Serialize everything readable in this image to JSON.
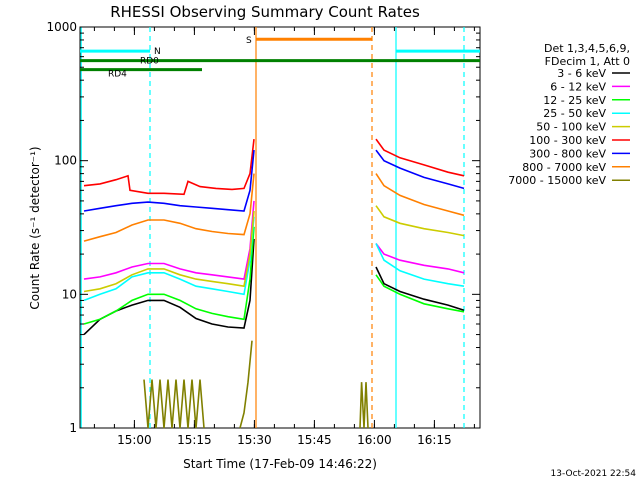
{
  "chart_data": {
    "type": "line",
    "title": "RHESSI Observing Summary Count Rates",
    "xlabel": "Start Time (17-Feb-09 14:46:22)",
    "ylabel": "Count Rate (s⁻¹ detector⁻¹)",
    "y_scale": "log",
    "ylim": [
      1,
      1000
    ],
    "xlim_minutes": [
      0,
      100
    ],
    "x_ticks": [
      {
        "label": "15:00",
        "t": 13.6
      },
      {
        "label": "15:15",
        "t": 28.6
      },
      {
        "label": "15:30",
        "t": 43.6
      },
      {
        "label": "15:45",
        "t": 58.6
      },
      {
        "label": "16:00",
        "t": 73.6
      },
      {
        "label": "16:15",
        "t": 88.6
      }
    ],
    "y_ticks": [
      {
        "label": "1",
        "v": 1
      },
      {
        "label": "10",
        "v": 10
      },
      {
        "label": "100",
        "v": 100
      },
      {
        "label": "1000",
        "v": 1000
      }
    ],
    "legend_header": [
      "Det 1,3,4,5,6,9,",
      "FDecim 1, Att 0"
    ],
    "series": [
      {
        "name": "3 - 6 keV",
        "color": "#000000",
        "segments": [
          [
            [
              1,
              5.0
            ],
            [
              5,
              6.5
            ],
            [
              9,
              7.5
            ],
            [
              13,
              8.3
            ],
            [
              17,
              9.0
            ],
            [
              21,
              9.0
            ],
            [
              25,
              8.0
            ],
            [
              29,
              6.6
            ],
            [
              33,
              6.0
            ],
            [
              37,
              5.7
            ],
            [
              41,
              5.6
            ],
            [
              42.5,
              9
            ],
            [
              43.5,
              26
            ]
          ],
          [
            [
              74,
              16.0
            ],
            [
              76,
              12.0
            ],
            [
              80,
              10.5
            ],
            [
              86,
              9.2
            ],
            [
              92,
              8.3
            ],
            [
              96,
              7.6
            ]
          ]
        ]
      },
      {
        "name": "6 - 12 keV",
        "color": "#ff00ff",
        "segments": [
          [
            [
              1,
              13.0
            ],
            [
              5,
              13.5
            ],
            [
              9,
              14.5
            ],
            [
              13,
              16.0
            ],
            [
              17,
              17.0
            ],
            [
              21,
              17.0
            ],
            [
              25,
              15.5
            ],
            [
              29,
              14.5
            ],
            [
              33,
              14.0
            ],
            [
              37,
              13.5
            ],
            [
              41,
              13.0
            ],
            [
              42.5,
              22
            ],
            [
              43.5,
              50
            ]
          ],
          [
            [
              74,
              24.0
            ],
            [
              76,
              20.0
            ],
            [
              80,
              18.0
            ],
            [
              86,
              16.5
            ],
            [
              92,
              15.5
            ],
            [
              96,
              14.5
            ]
          ]
        ]
      },
      {
        "name": "12 - 25 keV",
        "color": "#00ff00",
        "segments": [
          [
            [
              1,
              6.0
            ],
            [
              5,
              6.5
            ],
            [
              9,
              7.5
            ],
            [
              13,
              9.0
            ],
            [
              17,
              10.0
            ],
            [
              21,
              10.0
            ],
            [
              25,
              9.0
            ],
            [
              29,
              7.8
            ],
            [
              33,
              7.2
            ],
            [
              37,
              6.8
            ],
            [
              41,
              6.5
            ],
            [
              42.5,
              13
            ],
            [
              43.5,
              32
            ]
          ],
          [
            [
              74,
              14.0
            ],
            [
              76,
              11.5
            ],
            [
              80,
              10.0
            ],
            [
              86,
              8.5
            ],
            [
              92,
              7.8
            ],
            [
              96,
              7.4
            ]
          ]
        ]
      },
      {
        "name": "25 - 50 keV",
        "color": "#00ffff",
        "segments": [
          [
            [
              1,
              9.0
            ],
            [
              5,
              10.0
            ],
            [
              9,
              11.0
            ],
            [
              13,
              13.5
            ],
            [
              17,
              14.5
            ],
            [
              21,
              14.5
            ],
            [
              25,
              13.0
            ],
            [
              29,
              11.5
            ],
            [
              33,
              11.0
            ],
            [
              37,
              10.5
            ],
            [
              41,
              10.0
            ],
            [
              42.5,
              18
            ],
            [
              43.5,
              38
            ]
          ],
          [
            [
              74,
              24.0
            ],
            [
              76,
              18.0
            ],
            [
              80,
              15.0
            ],
            [
              86,
              13.0
            ],
            [
              92,
              12.0
            ],
            [
              96,
              11.5
            ]
          ]
        ]
      },
      {
        "name": "50 - 100 keV",
        "color": "#cccc00",
        "segments": [
          [
            [
              1,
              10.5
            ],
            [
              5,
              11.0
            ],
            [
              9,
              12.0
            ],
            [
              13,
              14.0
            ],
            [
              17,
              15.5
            ],
            [
              21,
              15.5
            ],
            [
              25,
              14.0
            ],
            [
              29,
              13.0
            ],
            [
              33,
              12.5
            ],
            [
              37,
              12.0
            ],
            [
              41,
              11.5
            ],
            [
              42.5,
              20
            ],
            [
              43.5,
              42
            ]
          ],
          [
            [
              74,
              46.0
            ],
            [
              76,
              38.0
            ],
            [
              80,
              34.0
            ],
            [
              86,
              31.0
            ],
            [
              92,
              29.0
            ],
            [
              96,
              27.5
            ]
          ]
        ]
      },
      {
        "name": "100 - 300 keV",
        "color": "#ff0000",
        "segments": [
          [
            [
              1,
              65.0
            ],
            [
              5,
              67.0
            ],
            [
              9,
              72.0
            ],
            [
              12,
              77.0
            ],
            [
              12.5,
              60.0
            ],
            [
              17,
              57.0
            ],
            [
              21,
              57.0
            ],
            [
              26,
              56.0
            ],
            [
              27,
              70.0
            ],
            [
              30,
              64.0
            ],
            [
              34,
              62.0
            ],
            [
              38,
              61.0
            ],
            [
              41,
              62.0
            ],
            [
              42.5,
              80
            ],
            [
              43.5,
              145
            ]
          ],
          [
            [
              74,
              145.0
            ],
            [
              76,
              120.0
            ],
            [
              80,
              105.0
            ],
            [
              86,
              93.0
            ],
            [
              92,
              82.0
            ],
            [
              96,
              77.0
            ]
          ]
        ]
      },
      {
        "name": "300 - 800 keV",
        "color": "#0000ff",
        "segments": [
          [
            [
              1,
              42.0
            ],
            [
              5,
              44.0
            ],
            [
              9,
              46.0
            ],
            [
              13,
              48.0
            ],
            [
              17,
              49.0
            ],
            [
              21,
              48.0
            ],
            [
              25,
              46.0
            ],
            [
              29,
              45.0
            ],
            [
              33,
              44.0
            ],
            [
              37,
              43.0
            ],
            [
              41,
              42.0
            ],
            [
              42.5,
              60
            ],
            [
              43.5,
              120
            ]
          ],
          [
            [
              74,
              120.0
            ],
            [
              76,
              100.0
            ],
            [
              80,
              88.0
            ],
            [
              86,
              75.0
            ],
            [
              92,
              67.0
            ],
            [
              96,
              62.0
            ]
          ]
        ]
      },
      {
        "name": "800 - 7000 keV",
        "color": "#ff8000",
        "segments": [
          [
            [
              1,
              25.0
            ],
            [
              5,
              27.0
            ],
            [
              9,
              29.0
            ],
            [
              13,
              33.0
            ],
            [
              17,
              36.0
            ],
            [
              21,
              36.0
            ],
            [
              25,
              34.0
            ],
            [
              29,
              31.0
            ],
            [
              33,
              29.5
            ],
            [
              37,
              28.5
            ],
            [
              41,
              28.0
            ],
            [
              42.5,
              40
            ],
            [
              43.5,
              80
            ]
          ],
          [
            [
              74,
              80.0
            ],
            [
              76,
              65.0
            ],
            [
              80,
              55.0
            ],
            [
              86,
              47.0
            ],
            [
              92,
              42.0
            ],
            [
              96,
              39.0
            ]
          ]
        ]
      },
      {
        "name": "7000 - 15000 keV",
        "color": "#808000",
        "segments": [
          [
            [
              16,
              2.3
            ],
            [
              17,
              1.0
            ],
            [
              18,
              2.3
            ],
            [
              19,
              1.0
            ],
            [
              20,
              2.3
            ],
            [
              21,
              1.0
            ],
            [
              22,
              2.3
            ],
            [
              23,
              1.0
            ],
            [
              24,
              2.3
            ],
            [
              25,
              1.0
            ],
            [
              26,
              2.3
            ],
            [
              27,
              1.0
            ],
            [
              28,
              2.3
            ],
            [
              29,
              1.0
            ],
            [
              30,
              2.3
            ],
            [
              31,
              1.0
            ]
          ],
          [
            [
              40,
              1.0
            ],
            [
              41,
              1.3
            ],
            [
              42,
              2.2
            ],
            [
              43,
              4.5
            ]
          ],
          [
            [
              70,
              1.0
            ],
            [
              70.4,
              2.2
            ],
            [
              71,
              1.0
            ],
            [
              71.5,
              2.2
            ],
            [
              72,
              1.0
            ]
          ]
        ]
      }
    ],
    "flags": [
      {
        "name": "N",
        "color": "#00ffff",
        "segments": [
          [
            0,
            17.5
          ],
          [
            79,
            100
          ]
        ],
        "y": 660
      },
      {
        "name": "RD0",
        "color": "#008000",
        "segments": [
          [
            0,
            100
          ]
        ],
        "y": 560
      },
      {
        "name": "RD4",
        "color": "#008000",
        "segments": [
          [
            0,
            30.5
          ]
        ],
        "y": 480
      },
      {
        "name": "S",
        "color": "#ff8000",
        "segments": [
          [
            44,
            73
          ]
        ],
        "y": 810
      }
    ],
    "vertical_lines": [
      {
        "t": 17.5,
        "color": "#00ffff",
        "style": "dashed"
      },
      {
        "t": 79.0,
        "color": "#00ffff",
        "style": "solid"
      },
      {
        "t": 96.0,
        "color": "#00ffff",
        "style": "dashed"
      },
      {
        "t": 0.3,
        "color": "#00ffff",
        "style": "solid"
      },
      {
        "t": 44.0,
        "color": "#ff8000",
        "style": "solid"
      },
      {
        "t": 73.0,
        "color": "#ff8000",
        "style": "dashed"
      }
    ],
    "footer": "13-Oct-2021 22:54"
  }
}
